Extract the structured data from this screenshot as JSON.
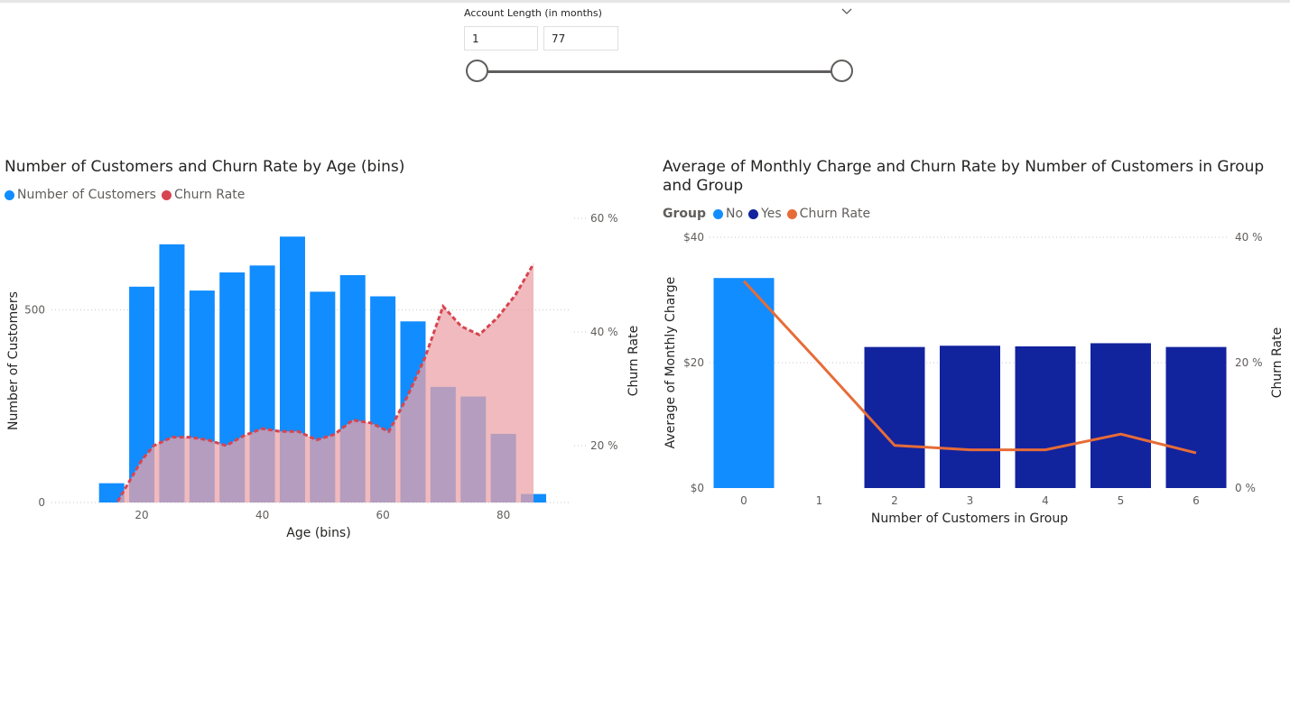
{
  "slicer": {
    "title": "Account Length (in months)",
    "min_value": "1",
    "max_value": "77"
  },
  "colors": {
    "customers_bar": "#118DFF",
    "churn_line_left": "#D64550",
    "churn_area_left": "#EBA3A8",
    "group_no": "#118DFF",
    "group_yes": "#12239E",
    "churn_line_right": "#E66C37"
  },
  "chart_data": [
    {
      "type": "bar",
      "title": "Number of Customers and Churn Rate by Age (bins)",
      "legend": [
        "Number of Customers",
        "Churn Rate"
      ],
      "legend_position": "top-left",
      "xlabel": "Age (bins)",
      "ylabel": "Number of Customers",
      "y2label": "Churn Rate",
      "x_ticks": [
        "20",
        "40",
        "60",
        "80"
      ],
      "y_ticks": [
        "0",
        "500"
      ],
      "y2_ticks": [
        "20 %",
        "40 %",
        "60 %"
      ],
      "xlim": [
        11,
        88
      ],
      "ylim": [
        0,
        700
      ],
      "y2lim": [
        6,
        58
      ],
      "grid": true,
      "series": [
        {
          "name": "Number of Customers",
          "type": "bar",
          "x": [
            15,
            20,
            25,
            30,
            35,
            40,
            45,
            50,
            55,
            60,
            65,
            70,
            75,
            80,
            85
          ],
          "values": [
            50,
            560,
            670,
            550,
            597,
            615,
            690,
            547,
            590,
            535,
            470,
            300,
            275,
            178,
            22
          ]
        },
        {
          "name": "Churn Rate",
          "type": "area",
          "axis": "secondary",
          "x": [
            16,
            20,
            22,
            25,
            28,
            31,
            34,
            37,
            40,
            43,
            46,
            49,
            52,
            55,
            58,
            61,
            64,
            67,
            70,
            73,
            76,
            79,
            82,
            85
          ],
          "values": [
            10.2,
            17.5,
            20.0,
            21.5,
            21.5,
            21.0,
            20.0,
            21.8,
            23.0,
            22.5,
            22.5,
            21.0,
            22.0,
            24.5,
            24.0,
            22.5,
            28.5,
            35.5,
            44.5,
            41.0,
            39.5,
            42.5,
            46.5,
            52.0
          ]
        }
      ]
    },
    {
      "type": "bar",
      "title": "Average of Monthly Charge and Churn Rate by Number of Customers in Group and Group",
      "legend_title": "Group",
      "legend": [
        "No",
        "Yes",
        "Churn Rate"
      ],
      "legend_position": "top-left",
      "xlabel": "Number of Customers in Group",
      "ylabel": "Average of Monthly Charge",
      "y2label": "Churn Rate",
      "categories": [
        "0",
        "1",
        "2",
        "3",
        "4",
        "5",
        "6"
      ],
      "y_ticks": [
        "$0",
        "$20",
        "$40"
      ],
      "y2_ticks": [
        "0 %",
        "20 %",
        "40 %"
      ],
      "ylim": [
        0,
        40
      ],
      "y2lim": [
        0,
        40
      ],
      "grid": true,
      "series": [
        {
          "name": "No",
          "values": [
            33.5,
            null,
            null,
            null,
            null,
            null,
            null
          ]
        },
        {
          "name": "Yes",
          "values": [
            null,
            null,
            22.5,
            22.7,
            22.6,
            23.1,
            22.5
          ]
        },
        {
          "name": "Churn Rate",
          "type": "line",
          "axis": "secondary",
          "values": [
            33,
            20,
            6.8,
            6.1,
            6.1,
            8.6,
            5.6
          ]
        }
      ]
    }
  ]
}
